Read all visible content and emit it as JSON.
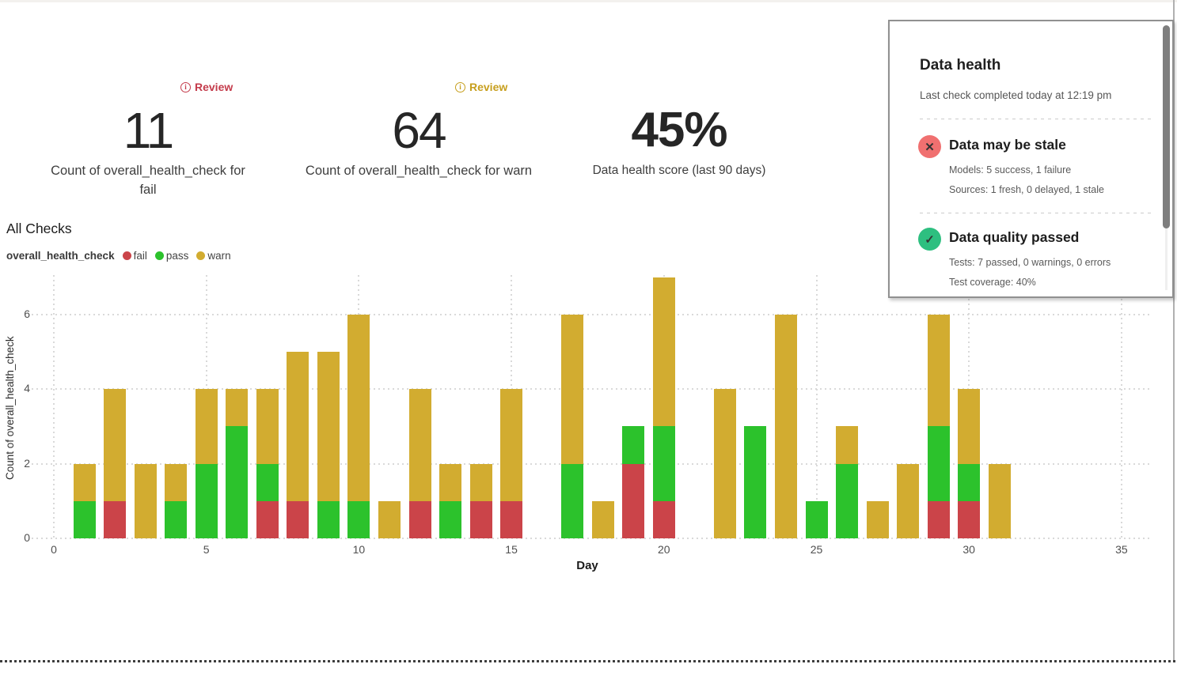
{
  "kpi_cards": [
    {
      "badge": {
        "label": "Review",
        "color": "#c43b4b",
        "icon_glyph": "i"
      },
      "value": "11",
      "caption": "Count of overall_health_check for fail"
    },
    {
      "badge": {
        "label": "Review",
        "color": "#c79f1e",
        "icon_glyph": "i"
      },
      "value": "64",
      "caption": "Count of overall_health_check for warn"
    },
    {
      "value": "45%",
      "caption": "Data health score (last 90 days)"
    }
  ],
  "section_title": "All Checks",
  "chart_data": {
    "type": "bar",
    "stacked": true,
    "title": "All Checks",
    "xlabel": "Day",
    "ylabel": "Count_of_overall_health_check_label",
    "ylabel_text": "Count of overall_health_check",
    "legend_title": "overall_health_check",
    "xlim": [
      0,
      35.8
    ],
    "ylim": [
      0,
      7
    ],
    "x_ticks": [
      0,
      5,
      10,
      15,
      20,
      25,
      30,
      35
    ],
    "y_ticks": [
      0,
      2,
      4,
      6
    ],
    "grid": true,
    "legend_position": "top-left",
    "x": [
      1,
      2,
      3,
      4,
      5,
      6,
      7,
      8,
      9,
      10,
      11,
      12,
      13,
      14,
      15,
      17,
      18,
      19,
      20,
      22,
      23,
      24,
      25,
      26,
      27,
      28,
      29,
      30,
      31
    ],
    "series": [
      {
        "name": "fail",
        "color": "#cb4449",
        "values": [
          0,
          1,
          0,
          0,
          0,
          0,
          1,
          1,
          0,
          0,
          0,
          1,
          0,
          1,
          1,
          0,
          0,
          2,
          1,
          0,
          0,
          0,
          0,
          0,
          0,
          0,
          1,
          1,
          0
        ]
      },
      {
        "name": "pass",
        "color": "#2cc22c",
        "values": [
          1,
          0,
          0,
          1,
          2,
          3,
          1,
          0,
          1,
          1,
          0,
          0,
          1,
          0,
          0,
          2,
          0,
          1,
          2,
          0,
          3,
          0,
          1,
          2,
          0,
          0,
          2,
          1,
          0
        ]
      },
      {
        "name": "warn",
        "color": "#d2ac30",
        "values": [
          1,
          3,
          2,
          1,
          2,
          1,
          2,
          4,
          4,
          5,
          1,
          3,
          1,
          1,
          3,
          4,
          1,
          0,
          4,
          4,
          0,
          6,
          0,
          1,
          1,
          2,
          3,
          2,
          2
        ]
      }
    ]
  },
  "health_panel": {
    "title": "Data health",
    "subtitle": "Last check completed today at 12:19 pm",
    "sections": [
      {
        "icon_glyph": "✕",
        "icon_bg": "#f07070",
        "title": "Data may be stale",
        "lines": [
          "Models: 5 success, 1 failure",
          "Sources: 1 fresh, 0 delayed, 1 stale"
        ]
      },
      {
        "icon_glyph": "✓",
        "icon_bg": "#2ebf80",
        "title": "Data quality passed",
        "lines": [
          "Tests: 7 passed, 0 warnings, 0 errors",
          "Test coverage: 40%"
        ]
      }
    ]
  }
}
